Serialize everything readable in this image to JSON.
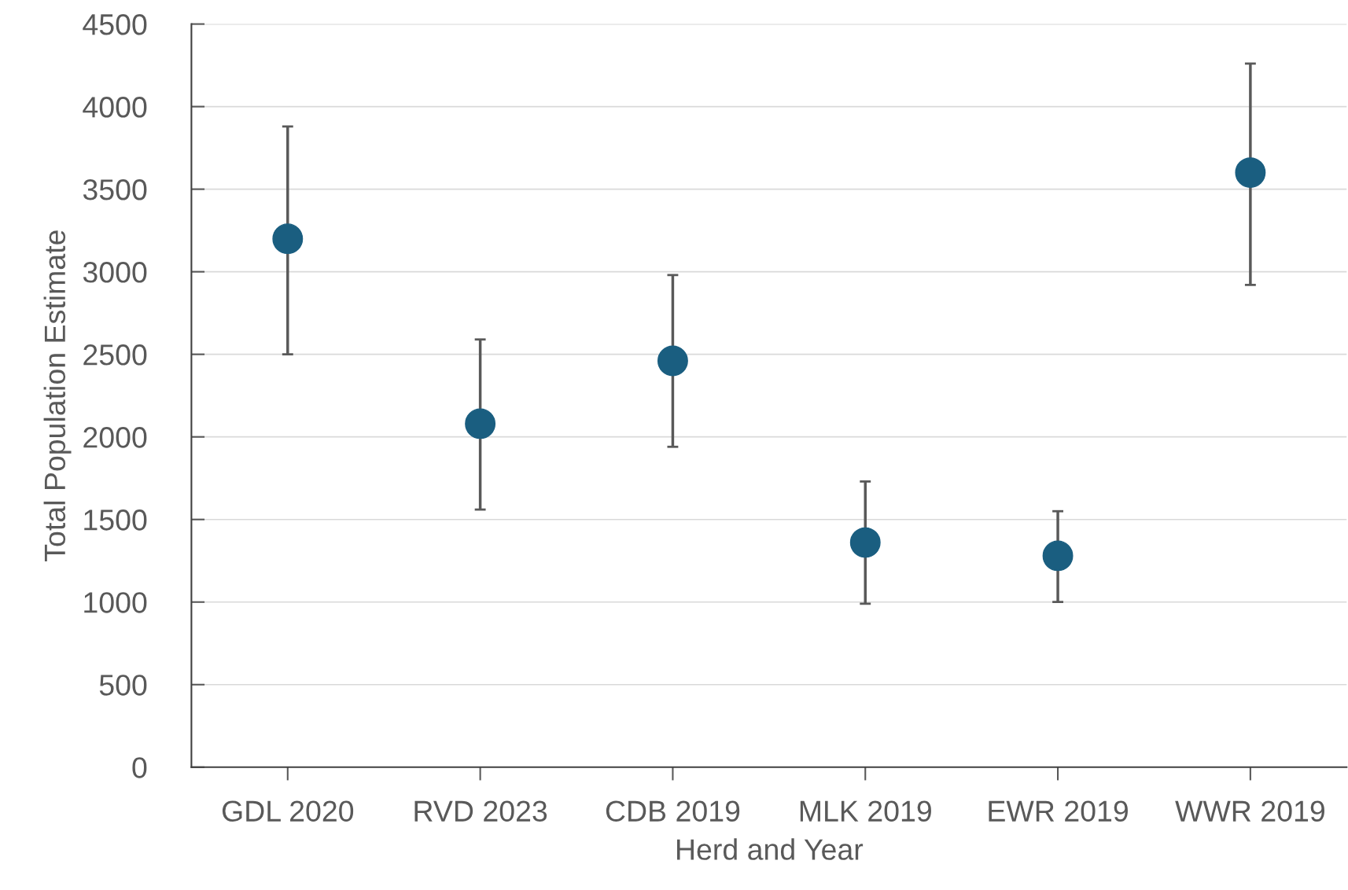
{
  "chart_data": {
    "type": "scatter",
    "xlabel": "Herd and Year",
    "ylabel": "Total Population Estimate",
    "categories": [
      "GDL 2020",
      "RVD 2023",
      "CDB 2019",
      "MLK 2019",
      "EWR 2019",
      "WWR 2019"
    ],
    "values": [
      3200,
      2080,
      2460,
      1360,
      1280,
      3600
    ],
    "errors": [
      [
        2500,
        3880
      ],
      [
        1560,
        2590
      ],
      [
        1940,
        2980
      ],
      [
        990,
        1730
      ],
      [
        1000,
        1550
      ],
      [
        2920,
        4260
      ]
    ],
    "color": "#1a5e80",
    "marker": "circle",
    "ylim": [
      0,
      4500
    ],
    "yticks": [
      0,
      500,
      1000,
      1500,
      2000,
      2500,
      3000,
      3500,
      4000,
      4500
    ],
    "grid": "y",
    "legend": false
  }
}
